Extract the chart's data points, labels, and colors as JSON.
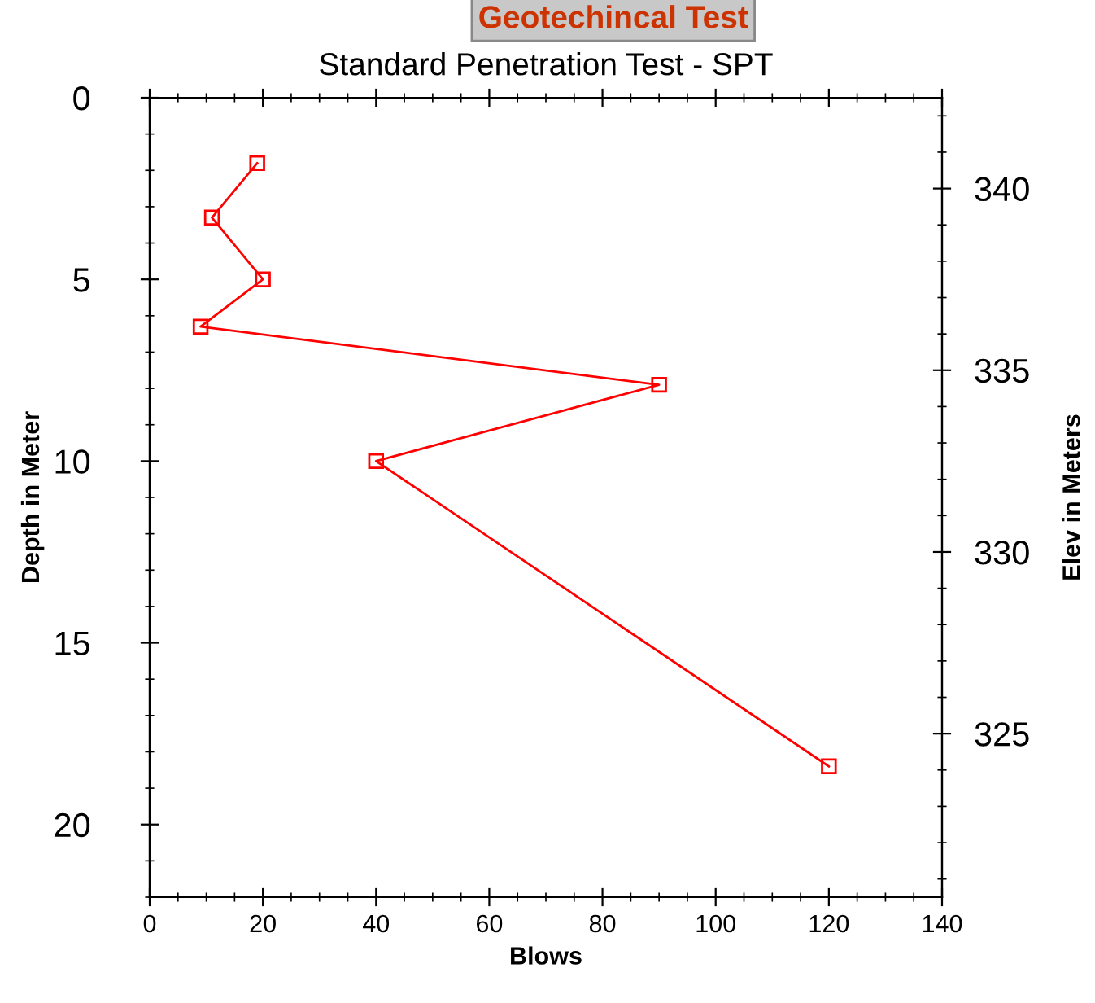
{
  "chart_data": {
    "type": "line",
    "title": "Standard Penetration Test - SPT",
    "xlabel": "Blows",
    "ylabel": "Depth in Meter",
    "y2label": "Elev in Meters",
    "annotations": [
      "Geotechincal Test"
    ],
    "series": [
      {
        "color": "#ff0000",
        "x": [
          19,
          11,
          20,
          9,
          90,
          40,
          120
        ],
        "values": [
          1.8,
          3.3,
          5.0,
          6.3,
          7.9,
          10.0,
          18.4
        ]
      }
    ],
    "xlim": [
      0,
      140
    ],
    "xticks": [
      0,
      20,
      40,
      60,
      80,
      100,
      120,
      140
    ],
    "ylim": [
      22,
      0
    ],
    "yticks": [
      0,
      5,
      10,
      15,
      20
    ],
    "y2lim": [
      320.5,
      342.5
    ],
    "y2ticks": [
      325,
      330,
      335,
      340
    ],
    "marker": "square",
    "line_style": "solid",
    "grid": false,
    "legend": false
  }
}
